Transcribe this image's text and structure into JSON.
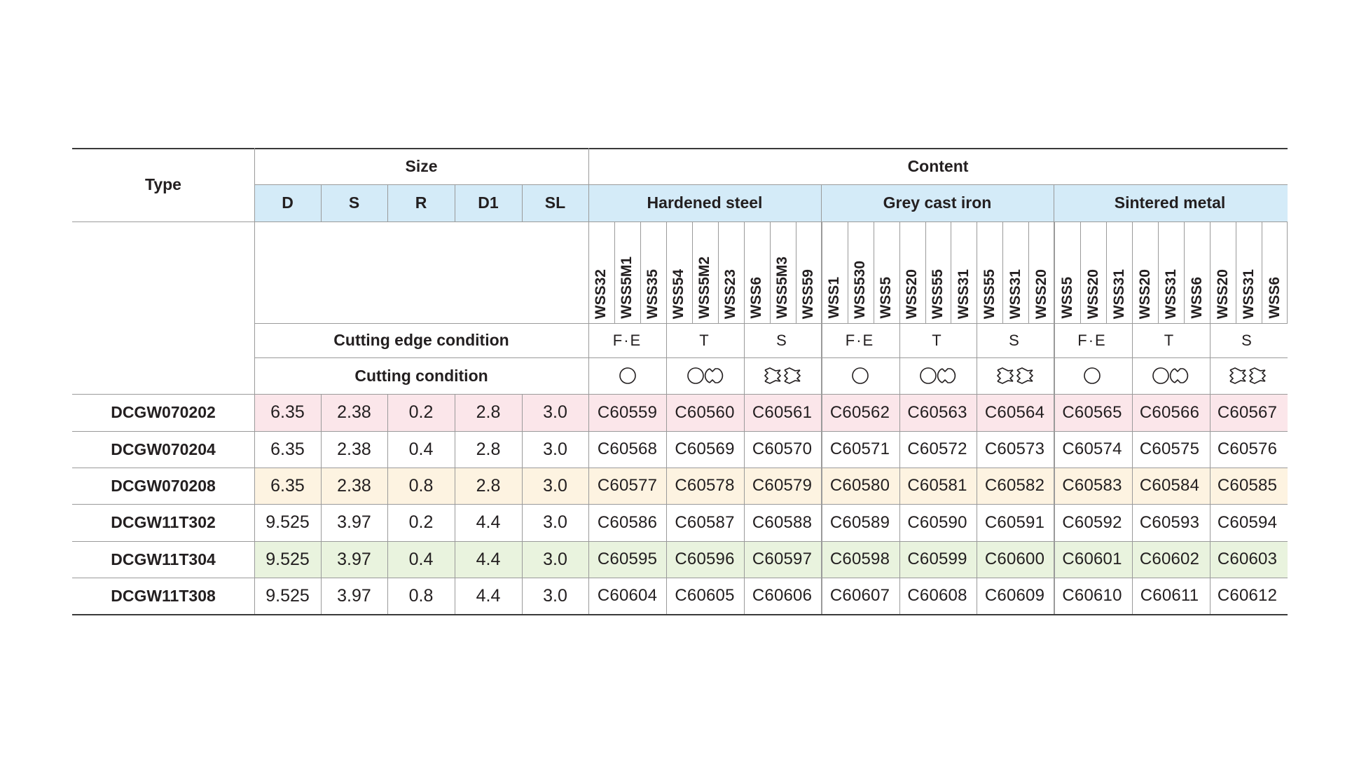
{
  "headers": {
    "type": "Type",
    "size": "Size",
    "content": "Content",
    "size_cols": [
      "D",
      "S",
      "R",
      "D1",
      "SL"
    ],
    "materials": [
      "Hardened steel",
      "Grey cast iron",
      "Sintered metal"
    ],
    "cutting_edge_condition": "Cutting edge condition",
    "cutting_condition": "Cutting condition"
  },
  "grade_codes": [
    "WSS32",
    "WSS5M1",
    "WSS35",
    "WSS54",
    "WSS5M2",
    "WSS23",
    "WSS6",
    "WSS5M3",
    "WSS59",
    "WSS1",
    "WSS530",
    "WSS5",
    "WSS20",
    "WSS55",
    "WSS31",
    "WSS55",
    "WSS31",
    "WSS20",
    "WSS5",
    "WSS20",
    "WSS31",
    "WSS20",
    "WSS31",
    "WSS6",
    "WSS20",
    "WSS31",
    "WSS6"
  ],
  "edge_conditions": [
    "F·E",
    "T",
    "S",
    "F·E",
    "T",
    "S",
    "F·E",
    "T",
    "S"
  ],
  "cutting_condition_icons": [
    "circle-icon",
    "circle-and-interrupted-icon",
    "heavy-interrupted-icon",
    "circle-icon",
    "circle-and-interrupted-icon",
    "heavy-interrupted-icon",
    "circle-icon",
    "circle-and-interrupted-icon",
    "heavy-interrupted-icon"
  ],
  "rows": [
    {
      "type": "DCGW070202",
      "size": [
        "6.35",
        "2.38",
        "0.2",
        "2.8",
        "3.0"
      ],
      "codes": [
        "C60559",
        "C60560",
        "C60561",
        "C60562",
        "C60563",
        "C60564",
        "C60565",
        "C60566",
        "C60567"
      ],
      "bg": "#fbe6ea"
    },
    {
      "type": "DCGW070204",
      "size": [
        "6.35",
        "2.38",
        "0.4",
        "2.8",
        "3.0"
      ],
      "codes": [
        "C60568",
        "C60569",
        "C60570",
        "C60571",
        "C60572",
        "C60573",
        "C60574",
        "C60575",
        "C60576"
      ],
      "bg": "#ffffff"
    },
    {
      "type": "DCGW070208",
      "size": [
        "6.35",
        "2.38",
        "0.8",
        "2.8",
        "3.0"
      ],
      "codes": [
        "C60577",
        "C60578",
        "C60579",
        "C60580",
        "C60581",
        "C60582",
        "C60583",
        "C60584",
        "C60585"
      ],
      "bg": "#fdf3e1"
    },
    {
      "type": "DCGW11T302",
      "size": [
        "9.525",
        "3.97",
        "0.2",
        "4.4",
        "3.0"
      ],
      "codes": [
        "C60586",
        "C60587",
        "C60588",
        "C60589",
        "C60590",
        "C60591",
        "C60592",
        "C60593",
        "C60594"
      ],
      "bg": "#ffffff"
    },
    {
      "type": "DCGW11T304",
      "size": [
        "9.525",
        "3.97",
        "0.4",
        "4.4",
        "3.0"
      ],
      "codes": [
        "C60595",
        "C60596",
        "C60597",
        "C60598",
        "C60599",
        "C60600",
        "C60601",
        "C60602",
        "C60603"
      ],
      "bg": "#e9f3de"
    },
    {
      "type": "DCGW11T308",
      "size": [
        "9.525",
        "3.97",
        "0.8",
        "4.4",
        "3.0"
      ],
      "codes": [
        "C60604",
        "C60605",
        "C60606",
        "C60607",
        "C60608",
        "C60609",
        "C60610",
        "C60611",
        "C60612"
      ],
      "bg": "#ffffff"
    }
  ],
  "colors": {
    "header_band": "#d4ebf8",
    "rule": "#9a9a9a",
    "rule_strong": "#3a3a3a"
  }
}
